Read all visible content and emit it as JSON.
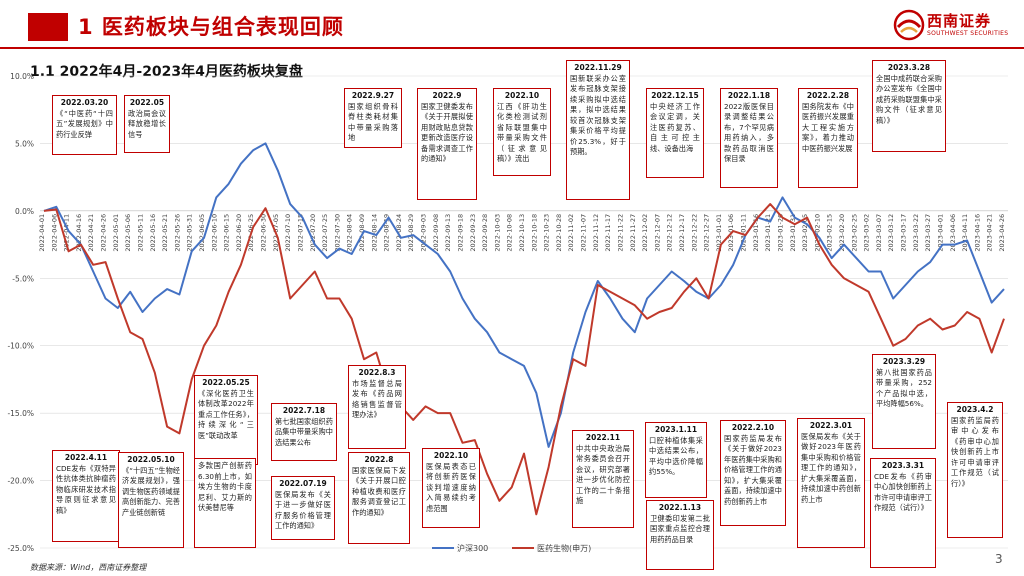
{
  "header": {
    "title": "1 医药板块与组合表现回顾",
    "logo_text": "西南证券",
    "logo_sub": "SOUTHWEST SECURITIES"
  },
  "subtitle": "1.1 2022年4月-2023年4月医药板块复盘",
  "footer": {
    "source": "数据来源：Wind，西南证券整理",
    "page": "3"
  },
  "colors": {
    "accent": "#c00000",
    "hs300": "#4472c4",
    "pharma": "#c0392b",
    "grid": "#d9d9d9"
  },
  "chart_data": {
    "type": "line",
    "ylim": [
      -25,
      10
    ],
    "yticks": [
      "10.0%",
      "5.0%",
      "0.0%",
      "-5.0%",
      "-10.0%",
      "-15.0%",
      "-20.0%",
      "-25.0%"
    ],
    "ytick_values": [
      10,
      5,
      0,
      -5,
      -10,
      -15,
      -20,
      -25
    ],
    "xticks": [
      "2022-04-01",
      "2022-04-06",
      "2022-04-11",
      "2022-04-16",
      "2022-04-21",
      "2022-04-26",
      "2022-05-01",
      "2022-05-06",
      "2022-05-11",
      "2022-05-16",
      "2022-05-21",
      "2022-05-26",
      "2022-05-31",
      "2022-06-05",
      "2022-06-10",
      "2022-06-15",
      "2022-06-20",
      "2022-06-25",
      "2022-06-30",
      "2022-07-05",
      "2022-07-10",
      "2022-07-15",
      "2022-07-20",
      "2022-07-25",
      "2022-07-30",
      "2022-08-04",
      "2022-08-09",
      "2022-08-14",
      "2022-08-19",
      "2022-08-24",
      "2022-08-29",
      "2022-09-03",
      "2022-09-08",
      "2022-09-13",
      "2022-09-18",
      "2022-09-23",
      "2022-09-28",
      "2022-10-03",
      "2022-10-08",
      "2022-10-13",
      "2022-10-18",
      "2022-10-23",
      "2022-10-28",
      "2022-11-02",
      "2022-11-07",
      "2022-11-12",
      "2022-11-17",
      "2022-11-22",
      "2022-11-27",
      "2022-12-02",
      "2022-12-07",
      "2022-12-12",
      "2022-12-17",
      "2022-12-22",
      "2022-12-27",
      "2023-01-01",
      "2023-01-06",
      "2023-01-11",
      "2023-01-16",
      "2023-01-21",
      "2023-01-26",
      "2023-01-31",
      "2023-02-05",
      "2023-02-10",
      "2023-02-15",
      "2023-02-20",
      "2023-02-25",
      "2023-03-02",
      "2023-03-07",
      "2023-03-12",
      "2023-03-17",
      "2023-03-22",
      "2023-03-27",
      "2023-04-01",
      "2023-04-06",
      "2023-04-11",
      "2023-04-16",
      "2023-04-21",
      "2023-04-26"
    ],
    "series": [
      {
        "name": "沪深300",
        "values": [
          0,
          0.3,
          -1.5,
          -2.5,
          -4.5,
          -6.5,
          -7.2,
          -6,
          -7.5,
          -6.5,
          -5.8,
          -6.2,
          -3,
          -2,
          1,
          2,
          3.5,
          4.5,
          5,
          3,
          0.5,
          -0.5,
          -2.5,
          -3.5,
          -2.8,
          -3.2,
          -1.5,
          -1.8,
          -0.5,
          -2,
          -1.8,
          -2.5,
          -3.2,
          -4.5,
          -6.5,
          -8,
          -9,
          -10.5,
          -11,
          -11.5,
          -13.5,
          -17.5,
          -15,
          -10.5,
          -7.5,
          -5.2,
          -6.5,
          -8,
          -9,
          -6.5,
          -5.5,
          -4.5,
          -5.2,
          -6,
          -6.5,
          -5.5,
          -4,
          -1.8,
          -0.5,
          -0.8,
          1,
          -0.5,
          -1,
          -2,
          -3.5,
          -2.5,
          -3.5,
          -4.5,
          -4.5,
          -6.5,
          -5.5,
          -4.5,
          -3.8,
          -2.5,
          -2.5,
          -2.2,
          -4.5,
          -6.8,
          -5.8
        ]
      },
      {
        "name": "医药生物(申万)",
        "values": [
          0,
          0.1,
          -3,
          -2.5,
          -4,
          -3.8,
          -6.5,
          -9,
          -9.5,
          -12,
          -16,
          -16.5,
          -12.5,
          -10,
          -8.5,
          -6,
          -4,
          -1.2,
          0.2,
          -2,
          -6.5,
          -5.5,
          -4.5,
          -6.5,
          -6.5,
          -8,
          -11,
          -10.5,
          -13.5,
          -14.5,
          -15.5,
          -14.5,
          -15,
          -15,
          -17.2,
          -17,
          -19.5,
          -21.5,
          -20.5,
          -18,
          -22.5,
          -19,
          -14.5,
          -11,
          -11.5,
          -5.5,
          -6,
          -6.5,
          -7,
          -8,
          -7.5,
          -7.2,
          -6,
          -5,
          -6.5,
          -2.5,
          -1.5,
          -1.8,
          -0.5,
          0.5,
          -0.5,
          -1,
          -0.5,
          -2.5,
          -4,
          -5,
          -5.5,
          -6,
          -8,
          -10,
          -9.5,
          -8.5,
          -8,
          -8.8,
          -8.5,
          -7.5,
          -8,
          -10.5,
          -8
        ]
      }
    ],
    "legend": "bottom-right",
    "annotations": [
      {
        "date": "2022.03.20",
        "text": "《“中医药“十四五”发展规划》中药行业反弹"
      },
      {
        "date": "2022.05",
        "text": "政治局会议释放稳增长信号"
      },
      {
        "date": "2022.9.27",
        "text": "国家组织骨科脊柱类耗材集中带量采购落地"
      },
      {
        "date": "2022.9",
        "text": "国家卫健委发布《关于开展拟使用财政贴息贷款更新改造医疗设备需求调查工作的通知》"
      },
      {
        "date": "2022.10",
        "text": "江西《肝功生化类检测试剂省际联盟集中带量采购文件（征求意见稿）》流出"
      },
      {
        "date": "2022.11.29",
        "text": "国新联采办公室发布冠脉支架接续采购拟中选结果，拟中选结果较首次冠脉支架集采价格平均提价25.3%，好于预期。"
      },
      {
        "date": "2022.12.15",
        "text": "中央经济工作会议定调，关注医药复苏、自主可控主线、设备出海"
      },
      {
        "date": "2022.1.18",
        "text": "2022版医保目录调整结果公布，7个罕见病用药纳入，多款药品取消医保目录"
      },
      {
        "date": "2022.2.28",
        "text": "国务院发布《中医药振兴发展重大工程实施方案》，着力推动中医药振兴发展"
      },
      {
        "date": "2023.3.28",
        "text": "全国中成药联合采购办公室发布《全国中成药采购联盟集中采购文件（征求意见稿）》"
      },
      {
        "date": "2022.05.25",
        "text": "《深化医药卫生体制改革2022年重点工作任务》，持续深化“三医”联动改革"
      },
      {
        "date": "2022.7.18",
        "text": "第七批国家组织药品集中带量采购中选结果公布"
      },
      {
        "date": "2022.8.3",
        "text": "市场监督总局发布《药品网络销售监督管理办法》"
      },
      {
        "date": "2023.3.29",
        "text": "第八批国家药品带量采购，252个产品拟中选，平均降幅56%。"
      },
      {
        "date": "2023.4.2",
        "text": "国家药监局药审中心发布《药审中心加快创新药上市许可申请审评工作规范（试行）》"
      },
      {
        "date": "2022.4.11",
        "text": "CDE发布《双特异性抗体类抗肿瘤药物临床研发技术指导原则征求意见稿》"
      },
      {
        "date": "2022.05.10",
        "text": "《“十四五”生物经济发展规划》，强调生物医药领域提高创新能力、完善产业链创新链"
      },
      {
        "date": "",
        "text": "多款国产创新药6.30前上市，如埃方生物的卡度尼利、艾力斯的伏美替尼等"
      },
      {
        "date": "2022.07.19",
        "text": "医保局发布《关于进一步做好医疗服务价格管理工作的通知》"
      },
      {
        "date": "2022.8",
        "text": "国家医保局下发《关于开展口腔种植收费和医疗服务调查登记工作的通知》"
      },
      {
        "date": "2022.10",
        "text": "医保局表态已将创新药医保谈判增速度纳入简易续约考虑范围"
      },
      {
        "date": "2022.11",
        "text": "中共中央政治局常务委员会召开会议，研究部署进一步优化防控工作的二十条措施"
      },
      {
        "date": "2023.1.11",
        "text": "口腔种植体集采中选结果公布，平均中选价降幅约55%。"
      },
      {
        "date": "2022.1.13",
        "text": "卫健委印发第二批国家重点监控合理用药药品目录"
      },
      {
        "date": "2022.2.10",
        "text": "国家药监局发布《关于做好2023年医药集中采购和价格管理工作的通知》，扩大集采覆盖面，持续加速中药创新药上市"
      },
      {
        "date": "2022.3.01",
        "text": "医保局发布《关于做好2023年医药集中采购和价格管理工作的通知》，扩大集采覆盖面，持续加速中药创新药上市"
      },
      {
        "date": "2023.3.31",
        "text": "CDE发布《药审中心加快创新药上市许可申请审评工作规范（试行）》"
      }
    ]
  }
}
